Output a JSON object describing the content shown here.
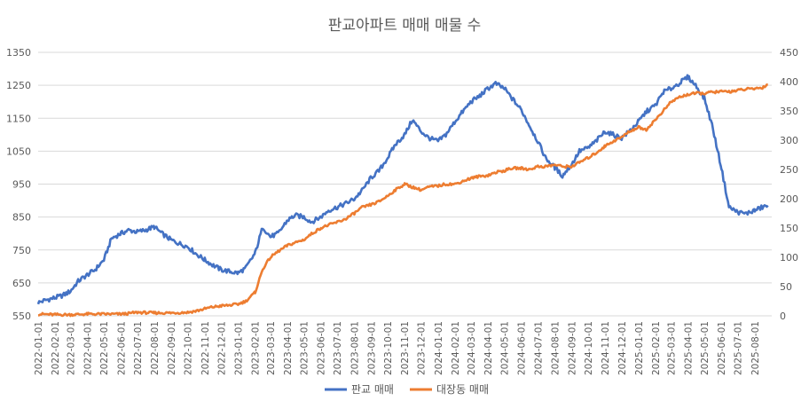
{
  "chart_data": {
    "type": "line",
    "title": "판교아파트 매매 매물 수",
    "x_ticks": [
      "2022-01-01",
      "2022-02-01",
      "2022-03-01",
      "2022-04-01",
      "2022-05-01",
      "2022-06-01",
      "2022-07-01",
      "2022-08-01",
      "2022-09-01",
      "2022-10-01",
      "2022-11-01",
      "2022-12-01",
      "2023-01-01",
      "2023-02-01",
      "2023-03-01",
      "2023-04-01",
      "2023-05-01",
      "2023-06-01",
      "2023-07-01",
      "2023-08-01",
      "2023-09-01",
      "2023-10-01",
      "2023-11-01",
      "2023-12-01",
      "2024-01-01",
      "2024-02-01",
      "2024-03-01",
      "2024-04-01",
      "2024-05-01",
      "2024-06-01",
      "2024-07-01",
      "2024-08-01",
      "2024-09-01",
      "2024-10-01",
      "2024-11-01",
      "2024-12-01",
      "2025-01-01",
      "2025-02-01",
      "2025-03-01",
      "2025-04-01",
      "2025-05-01",
      "2025-06-01",
      "2025-07-01",
      "2025-08-01"
    ],
    "y_left": {
      "min": 550,
      "max": 1350,
      "ticks": [
        550,
        650,
        750,
        850,
        950,
        1050,
        1150,
        1250,
        1350
      ]
    },
    "y_right": {
      "min": 0,
      "max": 450,
      "ticks": [
        0,
        50,
        100,
        150,
        200,
        250,
        300,
        350,
        400,
        450
      ]
    },
    "grid": true,
    "legend_position": "bottom",
    "series": [
      {
        "name": "판교 매매",
        "axis": "left",
        "color": "#4472c4",
        "points": [
          [
            "2022-01-01",
            590
          ],
          [
            "2022-01-15",
            598
          ],
          [
            "2022-02-01",
            605
          ],
          [
            "2022-02-15",
            612
          ],
          [
            "2022-03-01",
            625
          ],
          [
            "2022-03-15",
            655
          ],
          [
            "2022-04-01",
            675
          ],
          [
            "2022-04-15",
            690
          ],
          [
            "2022-05-01",
            720
          ],
          [
            "2022-05-15",
            785
          ],
          [
            "2022-06-01",
            800
          ],
          [
            "2022-06-15",
            810
          ],
          [
            "2022-07-01",
            805
          ],
          [
            "2022-07-15",
            810
          ],
          [
            "2022-08-01",
            820
          ],
          [
            "2022-08-15",
            800
          ],
          [
            "2022-09-01",
            780
          ],
          [
            "2022-09-15",
            770
          ],
          [
            "2022-10-01",
            760
          ],
          [
            "2022-10-15",
            740
          ],
          [
            "2022-11-01",
            720
          ],
          [
            "2022-11-15",
            705
          ],
          [
            "2022-12-01",
            690
          ],
          [
            "2022-12-15",
            685
          ],
          [
            "2023-01-01",
            680
          ],
          [
            "2023-01-15",
            695
          ],
          [
            "2023-02-01",
            740
          ],
          [
            "2023-02-15",
            820
          ],
          [
            "2023-03-01",
            790
          ],
          [
            "2023-03-15",
            800
          ],
          [
            "2023-04-01",
            840
          ],
          [
            "2023-04-15",
            855
          ],
          [
            "2023-05-01",
            850
          ],
          [
            "2023-05-15",
            835
          ],
          [
            "2023-06-01",
            850
          ],
          [
            "2023-06-15",
            870
          ],
          [
            "2023-07-01",
            880
          ],
          [
            "2023-07-15",
            890
          ],
          [
            "2023-08-01",
            905
          ],
          [
            "2023-08-15",
            930
          ],
          [
            "2023-09-01",
            970
          ],
          [
            "2023-09-15",
            990
          ],
          [
            "2023-10-01",
            1030
          ],
          [
            "2023-10-15",
            1070
          ],
          [
            "2023-11-01",
            1100
          ],
          [
            "2023-11-15",
            1145
          ],
          [
            "2023-12-01",
            1110
          ],
          [
            "2023-12-15",
            1090
          ],
          [
            "2024-01-01",
            1080
          ],
          [
            "2024-01-15",
            1100
          ],
          [
            "2024-02-01",
            1140
          ],
          [
            "2024-02-15",
            1170
          ],
          [
            "2024-03-01",
            1200
          ],
          [
            "2024-03-15",
            1215
          ],
          [
            "2024-04-01",
            1240
          ],
          [
            "2024-04-15",
            1255
          ],
          [
            "2024-05-01",
            1240
          ],
          [
            "2024-05-15",
            1210
          ],
          [
            "2024-06-01",
            1175
          ],
          [
            "2024-06-15",
            1130
          ],
          [
            "2024-07-01",
            1080
          ],
          [
            "2024-07-15",
            1030
          ],
          [
            "2024-08-01",
            1000
          ],
          [
            "2024-08-15",
            975
          ],
          [
            "2024-09-01",
            1010
          ],
          [
            "2024-09-15",
            1050
          ],
          [
            "2024-10-01",
            1060
          ],
          [
            "2024-10-15",
            1080
          ],
          [
            "2024-11-01",
            1110
          ],
          [
            "2024-11-15",
            1100
          ],
          [
            "2024-12-01",
            1090
          ],
          [
            "2024-12-15",
            1110
          ],
          [
            "2025-01-01",
            1140
          ],
          [
            "2025-01-15",
            1170
          ],
          [
            "2025-02-01",
            1190
          ],
          [
            "2025-02-15",
            1230
          ],
          [
            "2025-03-01",
            1240
          ],
          [
            "2025-03-15",
            1255
          ],
          [
            "2025-04-01",
            1275
          ],
          [
            "2025-04-15",
            1250
          ],
          [
            "2025-05-01",
            1210
          ],
          [
            "2025-05-15",
            1130
          ],
          [
            "2025-06-01",
            1000
          ],
          [
            "2025-06-15",
            880
          ],
          [
            "2025-07-01",
            865
          ],
          [
            "2025-07-15",
            860
          ],
          [
            "2025-08-01",
            870
          ],
          [
            "2025-08-15",
            880
          ],
          [
            "2025-08-25",
            885
          ]
        ]
      },
      {
        "name": "대장동 매매",
        "axis": "right",
        "color": "#ed7d31",
        "points": [
          [
            "2022-01-01",
            3
          ],
          [
            "2022-02-01",
            2
          ],
          [
            "2022-03-01",
            2
          ],
          [
            "2022-04-01",
            3
          ],
          [
            "2022-05-01",
            3
          ],
          [
            "2022-06-01",
            3
          ],
          [
            "2022-06-15",
            4
          ],
          [
            "2022-07-01",
            6
          ],
          [
            "2022-08-01",
            5
          ],
          [
            "2022-09-01",
            5
          ],
          [
            "2022-10-01",
            6
          ],
          [
            "2022-10-15",
            8
          ],
          [
            "2022-11-01",
            12
          ],
          [
            "2022-11-15",
            15
          ],
          [
            "2022-12-01",
            17
          ],
          [
            "2022-12-15",
            18
          ],
          [
            "2023-01-01",
            20
          ],
          [
            "2023-01-15",
            25
          ],
          [
            "2023-02-01",
            40
          ],
          [
            "2023-02-15",
            80
          ],
          [
            "2023-03-01",
            100
          ],
          [
            "2023-03-15",
            110
          ],
          [
            "2023-04-01",
            120
          ],
          [
            "2023-04-15",
            125
          ],
          [
            "2023-05-01",
            130
          ],
          [
            "2023-05-15",
            140
          ],
          [
            "2023-06-01",
            150
          ],
          [
            "2023-06-15",
            155
          ],
          [
            "2023-07-01",
            160
          ],
          [
            "2023-07-15",
            165
          ],
          [
            "2023-08-01",
            175
          ],
          [
            "2023-08-15",
            185
          ],
          [
            "2023-09-01",
            190
          ],
          [
            "2023-09-15",
            195
          ],
          [
            "2023-10-01",
            205
          ],
          [
            "2023-10-15",
            215
          ],
          [
            "2023-11-01",
            225
          ],
          [
            "2023-11-15",
            220
          ],
          [
            "2023-12-01",
            215
          ],
          [
            "2023-12-15",
            220
          ],
          [
            "2024-01-01",
            222
          ],
          [
            "2024-01-15",
            225
          ],
          [
            "2024-02-01",
            225
          ],
          [
            "2024-02-15",
            230
          ],
          [
            "2024-03-01",
            235
          ],
          [
            "2024-03-15",
            238
          ],
          [
            "2024-04-01",
            240
          ],
          [
            "2024-04-15",
            245
          ],
          [
            "2024-05-01",
            248
          ],
          [
            "2024-05-15",
            252
          ],
          [
            "2024-06-01",
            252
          ],
          [
            "2024-06-15",
            250
          ],
          [
            "2024-07-01",
            255
          ],
          [
            "2024-07-15",
            255
          ],
          [
            "2024-08-01",
            258
          ],
          [
            "2024-08-15",
            255
          ],
          [
            "2024-09-01",
            255
          ],
          [
            "2024-09-15",
            262
          ],
          [
            "2024-10-01",
            270
          ],
          [
            "2024-10-15",
            278
          ],
          [
            "2024-11-01",
            290
          ],
          [
            "2024-11-15",
            298
          ],
          [
            "2024-12-01",
            305
          ],
          [
            "2024-12-15",
            315
          ],
          [
            "2025-01-01",
            322
          ],
          [
            "2025-01-15",
            318
          ],
          [
            "2025-02-01",
            335
          ],
          [
            "2025-02-15",
            350
          ],
          [
            "2025-03-01",
            365
          ],
          [
            "2025-03-15",
            373
          ],
          [
            "2025-04-01",
            378
          ],
          [
            "2025-04-15",
            380
          ],
          [
            "2025-05-01",
            380
          ],
          [
            "2025-05-15",
            382
          ],
          [
            "2025-06-01",
            383
          ],
          [
            "2025-06-15",
            383
          ],
          [
            "2025-07-01",
            385
          ],
          [
            "2025-07-15",
            387
          ],
          [
            "2025-08-01",
            388
          ],
          [
            "2025-08-15",
            390
          ],
          [
            "2025-08-25",
            395
          ]
        ]
      }
    ]
  }
}
